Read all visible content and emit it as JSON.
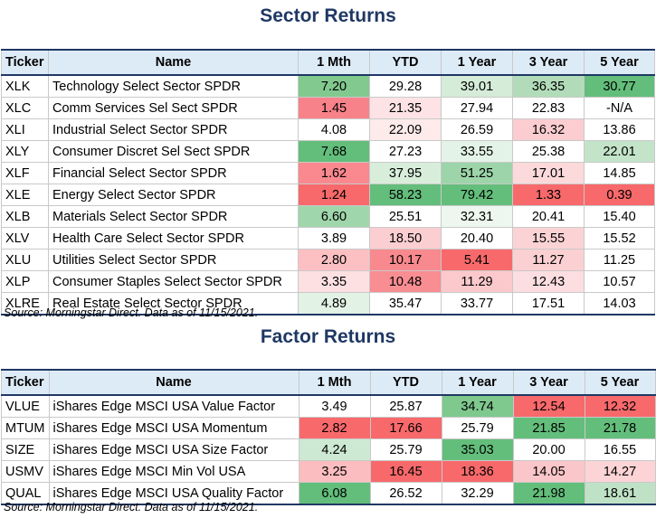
{
  "sector": {
    "title": "Sector Returns",
    "headers": [
      "Ticker",
      "Name",
      "1 Mth",
      "YTD",
      "1 Year",
      "3 Year",
      "5 Year"
    ],
    "rows": [
      {
        "ticker": "XLK",
        "name": "Technology Select Sector SPDR",
        "vals": [
          "7.20",
          "29.28",
          "39.01",
          "36.35",
          "30.77"
        ],
        "colors": [
          "#82c98f",
          "#ffffff",
          "#d5ecd8",
          "#b2dcb9",
          "#63be7b"
        ]
      },
      {
        "ticker": "XLC",
        "name": "Comm Services Sel Sect SPDR",
        "vals": [
          "1.45",
          "21.35",
          "27.94",
          "22.83",
          "-N/A"
        ],
        "colors": [
          "#f8828a",
          "#fde3e5",
          "#ffffff",
          "#ffffff",
          "#ffffff"
        ]
      },
      {
        "ticker": "XLI",
        "name": "Industrial Select Sector SPDR",
        "vals": [
          "4.08",
          "22.09",
          "26.59",
          "16.32",
          "13.86"
        ],
        "colors": [
          "#ffffff",
          "#fdeaeb",
          "#ffffff",
          "#fbcdd0",
          "#ffffff"
        ]
      },
      {
        "ticker": "XLY",
        "name": "Consumer Discret Sel Sect SPDR",
        "vals": [
          "7.68",
          "27.23",
          "33.55",
          "25.38",
          "22.01"
        ],
        "colors": [
          "#63be7b",
          "#ffffff",
          "#e4f3e7",
          "#ffffff",
          "#c3e4c9"
        ]
      },
      {
        "ticker": "XLF",
        "name": "Financial Select Sector SPDR",
        "vals": [
          "1.62",
          "37.95",
          "51.25",
          "17.01",
          "14.85"
        ],
        "colors": [
          "#f9888f",
          "#d8eedb",
          "#9dd4a9",
          "#fcd9db",
          "#ffffff"
        ]
      },
      {
        "ticker": "XLE",
        "name": "Energy Select Sector SPDR",
        "vals": [
          "1.24",
          "58.23",
          "79.42",
          "1.33",
          "0.39"
        ],
        "colors": [
          "#f8696b",
          "#63be7b",
          "#63be7b",
          "#f8696b",
          "#f8696b"
        ]
      },
      {
        "ticker": "XLB",
        "name": "Materials Select Sector SPDR",
        "vals": [
          "6.60",
          "25.51",
          "32.31",
          "20.41",
          "15.40"
        ],
        "colors": [
          "#9fd6ab",
          "#ffffff",
          "#edf7ef",
          "#ffffff",
          "#ffffff"
        ]
      },
      {
        "ticker": "XLV",
        "name": "Health Care Select Sector SPDR",
        "vals": [
          "3.89",
          "18.50",
          "20.40",
          "15.55",
          "15.52"
        ],
        "colors": [
          "#ffffff",
          "#fbcfd2",
          "#ffffff",
          "#fbd3d5",
          "#ffffff"
        ]
      },
      {
        "ticker": "XLU",
        "name": "Utilities Select Sector SPDR",
        "vals": [
          "2.80",
          "10.17",
          "5.41",
          "11.27",
          "11.25"
        ],
        "colors": [
          "#fcc0c3",
          "#f8898e",
          "#f8696b",
          "#fbd0d3",
          "#ffffff"
        ]
      },
      {
        "ticker": "XLP",
        "name": "Consumer Staples Select Sector SPDR",
        "vals": [
          "3.35",
          "10.48",
          "11.29",
          "12.43",
          "10.57"
        ],
        "colors": [
          "#fde0e2",
          "#f88d92",
          "#fbc9cc",
          "#fcdee0",
          "#ffffff"
        ]
      },
      {
        "ticker": "XLRE",
        "name": "Real Estate Select Sector SPDR",
        "vals": [
          "4.89",
          "35.47",
          "33.77",
          "17.51",
          "14.03"
        ],
        "colors": [
          "#e2f2e5",
          "#ffffff",
          "#ffffff",
          "#ffffff",
          "#ffffff"
        ]
      }
    ],
    "source": "Source: Morningstar Direct. Data as of 11/15/2021."
  },
  "factor": {
    "title": "Factor Returns",
    "headers": [
      "Ticker",
      "Name",
      "1 Mth",
      "YTD",
      "1 Year",
      "3 Year",
      "5 Year"
    ],
    "rows": [
      {
        "ticker": "VLUE",
        "name": "iShares Edge MSCI USA Value Factor",
        "vals": [
          "3.49",
          "25.87",
          "34.74",
          "12.54",
          "12.32"
        ],
        "colors": [
          "#ffffff",
          "#ffffff",
          "#7fc88e",
          "#f8696b",
          "#f8696b"
        ]
      },
      {
        "ticker": "MTUM",
        "name": "iShares Edge MSCI USA Momentum",
        "vals": [
          "2.82",
          "17.66",
          "25.79",
          "21.85",
          "21.78"
        ],
        "colors": [
          "#f8696b",
          "#f8696b",
          "#ffffff",
          "#63be7b",
          "#63be7b"
        ]
      },
      {
        "ticker": "SIZE",
        "name": "iShares Edge MSCI USA Size Factor",
        "vals": [
          "4.24",
          "25.79",
          "35.03",
          "20.00",
          "16.55"
        ],
        "colors": [
          "#cde9d3",
          "#ffffff",
          "#63be7b",
          "#ffffff",
          "#ffffff"
        ]
      },
      {
        "ticker": "USMV",
        "name": "iShares Edge MSCI Min Vol USA",
        "vals": [
          "3.25",
          "16.45",
          "18.36",
          "14.05",
          "14.27"
        ],
        "colors": [
          "#fbbdc0",
          "#f8696b",
          "#f8696b",
          "#fbc6c9",
          "#fcd4d6"
        ]
      },
      {
        "ticker": "QUAL",
        "name": "iShares Edge MSCI USA Quality Factor",
        "vals": [
          "6.08",
          "26.52",
          "32.29",
          "21.98",
          "18.61"
        ],
        "colors": [
          "#63be7b",
          "#ffffff",
          "#ffffff",
          "#63be7b",
          "#bfe2c6"
        ]
      }
    ],
    "source": "Source: Morningstar Direct. Data as of 11/15/2021."
  }
}
